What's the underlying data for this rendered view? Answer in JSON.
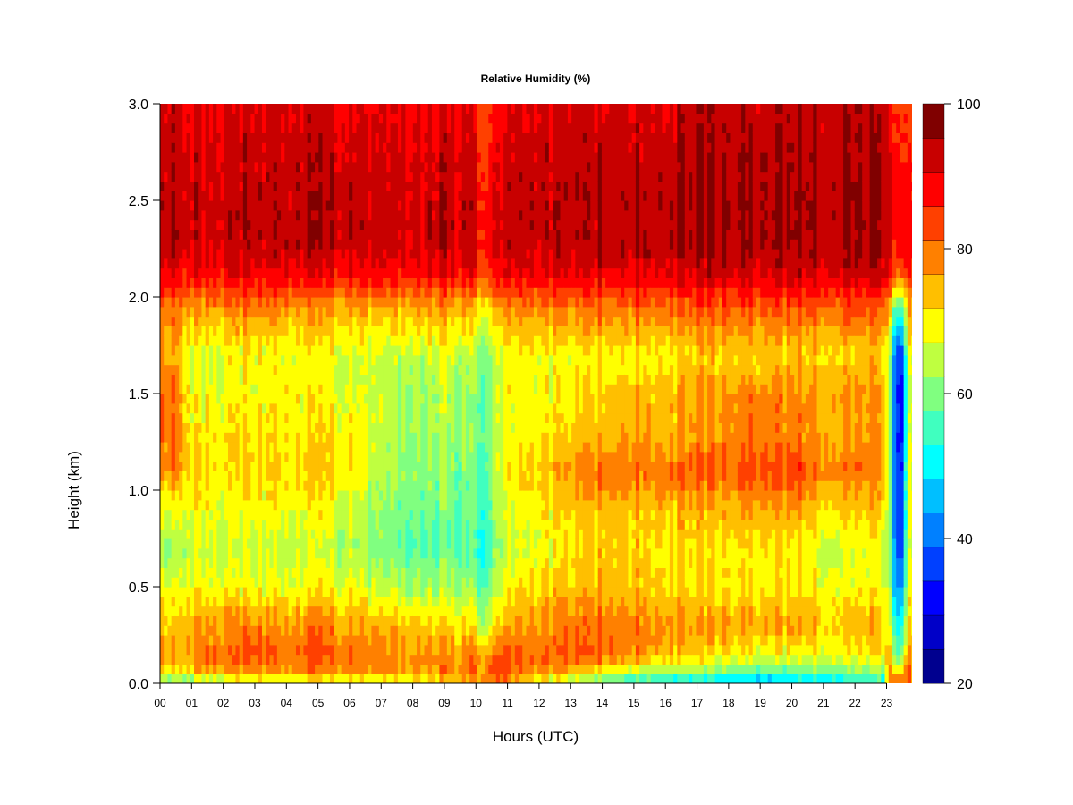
{
  "chart_data": {
    "type": "heatmap",
    "title": "Relative Humidity (%)",
    "xlabel": "Hours (UTC)",
    "ylabel": "Height (km)",
    "xlim": [
      0,
      24
    ],
    "ylim": [
      0,
      3
    ],
    "x_ticks": [
      "00",
      "01",
      "02",
      "03",
      "04",
      "05",
      "06",
      "07",
      "08",
      "09",
      "10",
      "11",
      "12",
      "13",
      "14",
      "15",
      "16",
      "17",
      "18",
      "19",
      "20",
      "21",
      "22",
      "23"
    ],
    "y_ticks": [
      "0.0",
      "0.5",
      "1.0",
      "1.5",
      "2.0",
      "2.5",
      "3.0"
    ],
    "colorbar": {
      "min": 20,
      "max": 100,
      "step": 5,
      "tick_values": [
        20,
        40,
        60,
        80,
        100
      ],
      "tick_labels": [
        "20",
        "40",
        "60",
        "80",
        "100"
      ],
      "colors": [
        "#00008f",
        "#0000c8",
        "#0000ff",
        "#0040ff",
        "#0080ff",
        "#00bfff",
        "#00ffff",
        "#40ffbf",
        "#80ff80",
        "#bfff40",
        "#ffff00",
        "#ffbf00",
        "#ff8000",
        "#ff4000",
        "#ff0000",
        "#c80000",
        "#800000"
      ]
    },
    "heights_km": [
      0.0,
      0.05,
      0.15,
      0.3,
      0.5,
      0.7,
      0.9,
      1.1,
      1.3,
      1.5,
      1.7,
      1.95,
      2.1,
      2.25,
      2.5,
      2.75,
      3.0
    ],
    "hours": [
      0.0,
      0.5,
      1.0,
      1.5,
      2.0,
      3.0,
      4.0,
      5.0,
      6.0,
      7.0,
      8.0,
      9.0,
      9.8,
      10.3,
      10.8,
      11.5,
      12.5,
      13.0,
      14.0,
      15.0,
      16.0,
      17.0,
      18.0,
      19.0,
      20.0,
      21.0,
      22.0,
      22.9,
      23.1,
      23.3,
      23.5,
      23.7,
      23.9
    ],
    "rh_profiles": [
      [
        60,
        76,
        80,
        78,
        72,
        66,
        72,
        80,
        84,
        86,
        80,
        84,
        93,
        98,
        99,
        98,
        96
      ],
      [
        58,
        74,
        80,
        76,
        70,
        64,
        72,
        82,
        84,
        84,
        78,
        84,
        93,
        99,
        99,
        98,
        97
      ],
      [
        60,
        76,
        82,
        80,
        74,
        70,
        72,
        76,
        74,
        72,
        72,
        80,
        92,
        97,
        98,
        97,
        95
      ],
      [
        62,
        78,
        84,
        80,
        72,
        68,
        72,
        74,
        74,
        72,
        70,
        80,
        92,
        96,
        97,
        96,
        95
      ],
      [
        64,
        80,
        85,
        82,
        72,
        68,
        72,
        74,
        74,
        72,
        72,
        82,
        93,
        97,
        98,
        97,
        95
      ],
      [
        64,
        80,
        86,
        82,
        72,
        68,
        72,
        76,
        74,
        72,
        72,
        82,
        93,
        98,
        98,
        97,
        95
      ],
      [
        66,
        80,
        85,
        82,
        72,
        68,
        72,
        76,
        74,
        74,
        72,
        82,
        94,
        99,
        99,
        98,
        96
      ],
      [
        66,
        82,
        86,
        82,
        72,
        68,
        72,
        76,
        74,
        72,
        72,
        80,
        93,
        98,
        99,
        98,
        96
      ],
      [
        66,
        82,
        85,
        80,
        72,
        66,
        70,
        74,
        74,
        70,
        70,
        80,
        92,
        97,
        98,
        97,
        95
      ],
      [
        68,
        80,
        82,
        78,
        68,
        62,
        64,
        66,
        68,
        68,
        68,
        78,
        92,
        97,
        97,
        96,
        94
      ],
      [
        70,
        80,
        82,
        78,
        66,
        60,
        62,
        64,
        66,
        66,
        68,
        80,
        92,
        97,
        98,
        96,
        94
      ],
      [
        72,
        82,
        82,
        76,
        66,
        60,
        62,
        64,
        66,
        68,
        70,
        80,
        93,
        98,
        98,
        97,
        95
      ],
      [
        76,
        82,
        82,
        74,
        64,
        58,
        60,
        62,
        62,
        64,
        66,
        78,
        92,
        96,
        97,
        96,
        94
      ],
      [
        80,
        86,
        80,
        68,
        60,
        56,
        58,
        60,
        62,
        62,
        64,
        74,
        88,
        92,
        92,
        90,
        88
      ],
      [
        82,
        88,
        86,
        76,
        70,
        66,
        68,
        70,
        70,
        70,
        70,
        80,
        92,
        96,
        96,
        95,
        93
      ],
      [
        72,
        82,
        84,
        80,
        74,
        70,
        72,
        76,
        72,
        72,
        72,
        82,
        93,
        97,
        98,
        97,
        95
      ],
      [
        66,
        80,
        84,
        82,
        76,
        72,
        74,
        78,
        74,
        72,
        72,
        82,
        93,
        97,
        98,
        97,
        95
      ],
      [
        62,
        78,
        86,
        84,
        78,
        74,
        76,
        82,
        76,
        74,
        72,
        84,
        94,
        98,
        99,
        98,
        96
      ],
      [
        58,
        72,
        86,
        84,
        78,
        76,
        78,
        84,
        78,
        76,
        74,
        84,
        94,
        99,
        99,
        98,
        96
      ],
      [
        52,
        68,
        82,
        84,
        78,
        76,
        78,
        84,
        80,
        78,
        74,
        84,
        95,
        99,
        99,
        98,
        96
      ],
      [
        50,
        64,
        78,
        82,
        76,
        74,
        78,
        84,
        78,
        78,
        74,
        84,
        95,
        99,
        99,
        98,
        96
      ],
      [
        48,
        62,
        76,
        80,
        74,
        74,
        78,
        86,
        80,
        80,
        76,
        86,
        96,
        99,
        100,
        99,
        97
      ],
      [
        46,
        60,
        74,
        80,
        74,
        74,
        78,
        86,
        82,
        82,
        76,
        86,
        96,
        100,
        100,
        99,
        98
      ],
      [
        44,
        58,
        72,
        80,
        74,
        74,
        80,
        88,
        84,
        82,
        76,
        86,
        96,
        100,
        100,
        99,
        98
      ],
      [
        46,
        60,
        72,
        80,
        74,
        74,
        80,
        88,
        82,
        82,
        76,
        86,
        96,
        100,
        100,
        99,
        98
      ],
      [
        48,
        60,
        72,
        78,
        72,
        70,
        76,
        84,
        80,
        80,
        76,
        86,
        96,
        100,
        100,
        99,
        98
      ],
      [
        50,
        62,
        72,
        78,
        72,
        70,
        76,
        84,
        80,
        80,
        76,
        86,
        96,
        100,
        100,
        99,
        98
      ],
      [
        52,
        64,
        74,
        78,
        72,
        70,
        76,
        82,
        80,
        80,
        76,
        86,
        96,
        100,
        100,
        99,
        98
      ],
      [
        80,
        84,
        78,
        72,
        68,
        64,
        64,
        66,
        66,
        66,
        66,
        80,
        92,
        96,
        96,
        95,
        94
      ],
      [
        82,
        80,
        60,
        52,
        44,
        40,
        38,
        36,
        36,
        34,
        38,
        56,
        84,
        92,
        94,
        92,
        90
      ],
      [
        84,
        82,
        64,
        58,
        48,
        42,
        40,
        38,
        36,
        36,
        40,
        60,
        86,
        94,
        94,
        92,
        90
      ],
      [
        88,
        90,
        84,
        78,
        74,
        72,
        72,
        74,
        72,
        70,
        72,
        82,
        90,
        94,
        94,
        92,
        90
      ],
      [
        70,
        76,
        74,
        72,
        70,
        68,
        68,
        70,
        68,
        68,
        70,
        76,
        84,
        90,
        90,
        88,
        86
      ]
    ]
  }
}
